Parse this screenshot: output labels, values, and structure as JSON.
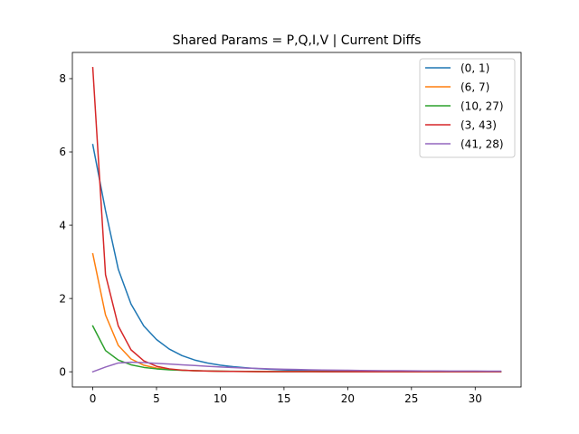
{
  "chart_data": {
    "type": "line",
    "title": "Shared Params = P,Q,I,V | Current Diffs",
    "xlabel": "",
    "ylabel": "",
    "xlim": [
      -1.6,
      33.6
    ],
    "ylim": [
      -0.415,
      8.715
    ],
    "xticks": [
      0,
      5,
      10,
      15,
      20,
      25,
      30
    ],
    "yticks": [
      0,
      2,
      4,
      6,
      8
    ],
    "x": [
      0,
      1,
      2,
      3,
      4,
      5,
      6,
      7,
      8,
      9,
      10,
      11,
      12,
      13,
      14,
      15,
      16,
      17,
      18,
      19,
      20,
      21,
      22,
      23,
      24,
      25,
      26,
      27,
      28,
      29,
      30,
      31,
      32
    ],
    "grid": false,
    "legend_position": "top-right",
    "series": [
      {
        "name": "(0, 1)",
        "color": "#1f77b4",
        "values": [
          6.2,
          4.4,
          2.8,
          1.85,
          1.25,
          0.88,
          0.62,
          0.44,
          0.32,
          0.24,
          0.18,
          0.14,
          0.11,
          0.085,
          0.065,
          0.05,
          0.04,
          0.032,
          0.026,
          0.021,
          0.017,
          0.014,
          0.012,
          0.01,
          0.009,
          0.008,
          0.007,
          0.006,
          0.005,
          0.005,
          0.004,
          0.004,
          0.004
        ]
      },
      {
        "name": "(6, 7)",
        "color": "#ff7f0e",
        "values": [
          3.22,
          1.55,
          0.72,
          0.35,
          0.18,
          0.1,
          0.06,
          0.04,
          0.03,
          0.02,
          0.015,
          0.01,
          0.008,
          0.006,
          0.005,
          0.004,
          0.003,
          0.003,
          0.002,
          0.002,
          0.002,
          0.001,
          0.001,
          0.001,
          0.001,
          0.001,
          0.001,
          0.001,
          0.001,
          0.001,
          0.001,
          0.001,
          0.001
        ]
      },
      {
        "name": "(10, 27)",
        "color": "#2ca02c",
        "values": [
          1.25,
          0.58,
          0.32,
          0.19,
          0.12,
          0.08,
          0.055,
          0.04,
          0.03,
          0.022,
          0.017,
          0.013,
          0.01,
          0.008,
          0.006,
          0.005,
          0.004,
          0.003,
          0.003,
          0.002,
          0.002,
          0.002,
          0.001,
          0.001,
          0.001,
          0.001,
          0.001,
          0.001,
          0.001,
          0.001,
          0.001,
          0.001,
          0.001
        ]
      },
      {
        "name": "(3, 43)",
        "color": "#d62728",
        "values": [
          8.3,
          2.65,
          1.25,
          0.6,
          0.3,
          0.15,
          0.08,
          0.045,
          0.03,
          0.02,
          0.014,
          0.01,
          0.008,
          0.006,
          0.005,
          0.004,
          0.003,
          0.003,
          0.002,
          0.002,
          0.002,
          0.002,
          0.001,
          0.001,
          0.001,
          0.001,
          0.001,
          0.001,
          0.001,
          0.001,
          0.001,
          0.001,
          0.001
        ]
      },
      {
        "name": "(41, 28)",
        "color": "#9467bd",
        "values": [
          0.0,
          0.13,
          0.24,
          0.26,
          0.25,
          0.23,
          0.21,
          0.19,
          0.17,
          0.15,
          0.13,
          0.115,
          0.1,
          0.09,
          0.08,
          0.07,
          0.062,
          0.055,
          0.049,
          0.044,
          0.04,
          0.036,
          0.033,
          0.03,
          0.028,
          0.026,
          0.024,
          0.022,
          0.021,
          0.02,
          0.019,
          0.018,
          0.017
        ]
      }
    ]
  }
}
